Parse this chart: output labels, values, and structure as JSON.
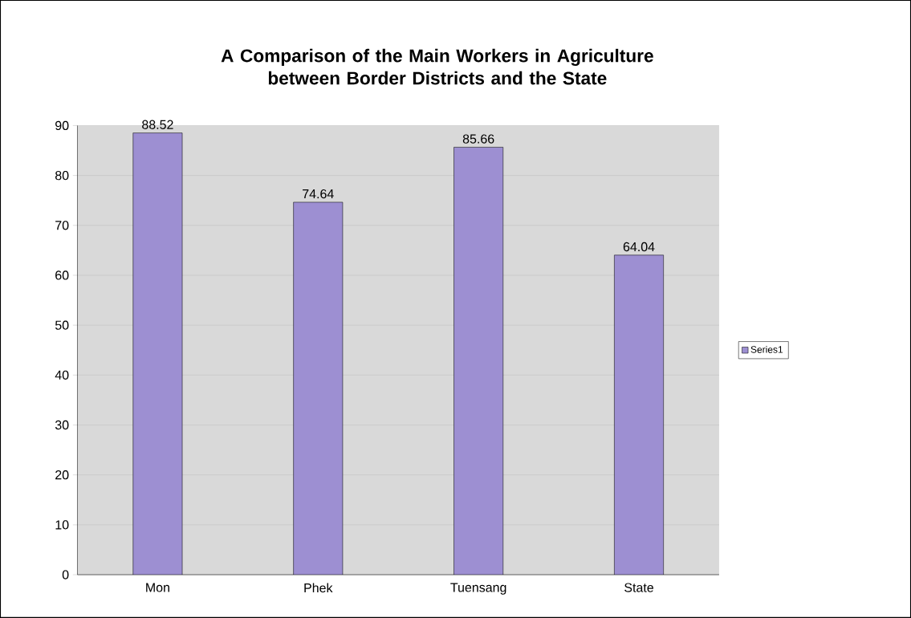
{
  "chart_data": {
    "type": "bar",
    "title": "A Comparison of the Main Workers in Agriculture between Border Districts and the State",
    "categories": [
      "Mon",
      "Phek",
      "Tuensang",
      "State"
    ],
    "series": [
      {
        "name": "Series1",
        "color": "#9d8fd2",
        "values": [
          88.52,
          74.64,
          85.66,
          64.04
        ]
      }
    ],
    "ylim": [
      0,
      90
    ],
    "yticks": [
      0,
      10,
      20,
      30,
      40,
      50,
      60,
      70,
      80,
      90
    ],
    "grid": "y",
    "legend": "right",
    "data_labels": true
  }
}
